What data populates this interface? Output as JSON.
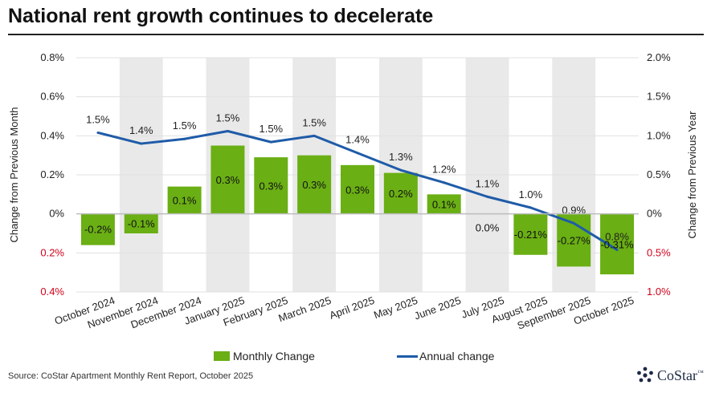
{
  "title": "National rent growth continues to decelerate",
  "source": "Source: CoStar Apartment Monthly Rent Report, October 2025",
  "logo": {
    "text": "CoStar",
    "suffix": "™"
  },
  "colors": {
    "bar": "#6aaf14",
    "line": "#1f5ba8",
    "band": "#e9e9e9",
    "negative_tick": "#d0021b"
  },
  "chart_data": {
    "type": "bar+line",
    "categories": [
      "October 2024",
      "November 2024",
      "December 2024",
      "January 2025",
      "February 2025",
      "March 2025",
      "April 2025",
      "May 2025",
      "June 2025",
      "July 2025",
      "August 2025",
      "September 2025",
      "October 2025"
    ],
    "series": [
      {
        "name": "Monthly Change",
        "type": "bar",
        "axis": "left",
        "values": [
          -0.16,
          -0.1,
          0.14,
          0.35,
          0.29,
          0.3,
          0.25,
          0.21,
          0.1,
          0.0,
          -0.21,
          -0.27,
          -0.31
        ],
        "labels": [
          "-0.2%",
          "-0.1%",
          "0.1%",
          "0.3%",
          "0.3%",
          "0.3%",
          "0.3%",
          "0.2%",
          "0.1%",
          "0.0%",
          "-0.21%",
          "-0.27%",
          "-0.31%"
        ]
      },
      {
        "name": "Annual change",
        "type": "line",
        "axis": "right",
        "values": [
          1.52,
          1.45,
          1.48,
          1.53,
          1.46,
          1.5,
          1.39,
          1.28,
          1.2,
          1.11,
          1.04,
          0.94,
          0.77
        ],
        "labels": [
          "1.5%",
          "1.4%",
          "1.5%",
          "1.5%",
          "1.5%",
          "1.5%",
          "1.4%",
          "1.3%",
          "1.2%",
          "1.1%",
          "1.0%",
          "0.9%",
          "0.8%"
        ]
      }
    ],
    "ylabel": "Change from Previous Month",
    "y2label": "Change from Previous Year",
    "ylim": [
      -0.4,
      0.8
    ],
    "y2lim": [
      1.0,
      2.0
    ],
    "yticks": [
      0.8,
      0.6,
      0.4,
      0.2,
      0,
      -0.2,
      -0.4
    ],
    "yticklabels": [
      "0.8%",
      "0.6%",
      "0.4%",
      "0.2%",
      "0%",
      "0.2%",
      "0.4%"
    ],
    "y2ticks": [
      2.0,
      1.5,
      1.0,
      0.5,
      0,
      -0.5,
      -1.0
    ],
    "y2ticklabels": [
      "2.0%",
      "1.5%",
      "1.0%",
      "0.5%",
      "0%",
      "0.5%",
      "1.0%"
    ],
    "legend_position": "bottom",
    "alternating_bands": true
  }
}
